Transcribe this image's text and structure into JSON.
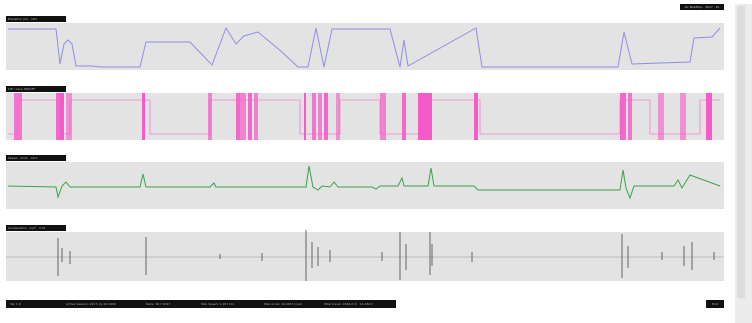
{
  "colors": {
    "altitude": "#8f8ee6",
    "lift": "#f45ac8",
    "speed": "#3aa24a",
    "acceleration": "#555555",
    "panel_bg": "#e3e3e3",
    "label_bg": "#111111"
  },
  "badge": "AC Roadtrip · 2017 · 1h",
  "panels": [
    {
      "id": "altitude",
      "label": "Elevation (m) · 184"
    },
    {
      "id": "lift",
      "label": "Lift / Lane ON/OFF"
    },
    {
      "id": "speed",
      "label": "Speed · km/h · 43.0"
    },
    {
      "id": "acceleration",
      "label": "Acceleration · m/s² · 0.01"
    }
  ],
  "status": {
    "version": "Ver 1.0",
    "session": "Active Session: 2017-11-10 0900",
    "date": "Date: 18.7.2017",
    "max_speed": "Max Speed: 1.267 km",
    "max_accel": "Max Accel: 10.0057 m/s2",
    "total": "Total travel: 1826.6 m · 10.180 h"
  },
  "button_label": "Exit"
}
